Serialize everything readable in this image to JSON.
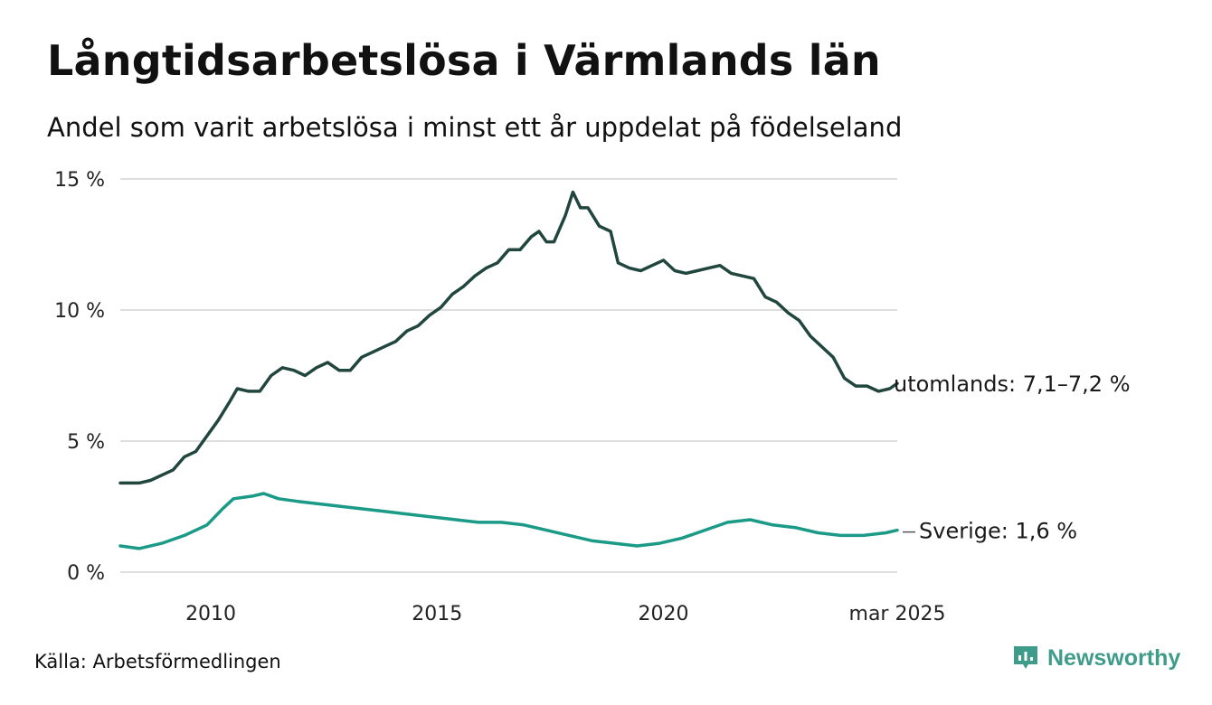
{
  "colors": {
    "series_utomlands": "#21463d",
    "series_sverige": "#1a9a87",
    "grid": "#dedede",
    "brand": "#3f9c8a"
  },
  "chart_data": {
    "type": "line",
    "title": "Långtidsarbetslösa i Värmlands län",
    "subtitle": "Andel som varit arbetslösa i minst ett år uppdelat på födelseland",
    "xlabel": "",
    "ylabel": "",
    "xlim": [
      "2008-01",
      "2025-03"
    ],
    "ylim": [
      0,
      15
    ],
    "grid": true,
    "x_ticks": [
      {
        "x": "2010-01",
        "label": "2010"
      },
      {
        "x": "2015-01",
        "label": "2015"
      },
      {
        "x": "2020-01",
        "label": "2020"
      },
      {
        "x": "2025-03",
        "label": "mar 2025"
      }
    ],
    "y_ticks": [
      {
        "value": 0,
        "label": "0 %"
      },
      {
        "value": 5,
        "label": "5 %"
      },
      {
        "value": 10,
        "label": "10 %"
      },
      {
        "value": 15,
        "label": "15 %"
      }
    ],
    "series": [
      {
        "end_label": "utomlands: 7,1–7,2 %",
        "color": "#21463d",
        "points": [
          [
            "2008-01",
            3.4
          ],
          [
            "2008-03",
            3.4
          ],
          [
            "2008-06",
            3.4
          ],
          [
            "2008-09",
            3.5
          ],
          [
            "2008-12",
            3.7
          ],
          [
            "2009-03",
            3.9
          ],
          [
            "2009-06",
            4.4
          ],
          [
            "2009-09",
            4.6
          ],
          [
            "2009-12",
            5.2
          ],
          [
            "2010-03",
            5.8
          ],
          [
            "2010-06",
            6.5
          ],
          [
            "2010-08",
            7.0
          ],
          [
            "2010-11",
            6.9
          ],
          [
            "2011-02",
            6.9
          ],
          [
            "2011-05",
            7.5
          ],
          [
            "2011-08",
            7.8
          ],
          [
            "2011-11",
            7.7
          ],
          [
            "2012-02",
            7.5
          ],
          [
            "2012-05",
            7.8
          ],
          [
            "2012-08",
            8.0
          ],
          [
            "2012-11",
            7.7
          ],
          [
            "2013-02",
            7.7
          ],
          [
            "2013-05",
            8.2
          ],
          [
            "2013-08",
            8.4
          ],
          [
            "2013-11",
            8.6
          ],
          [
            "2014-02",
            8.8
          ],
          [
            "2014-05",
            9.2
          ],
          [
            "2014-08",
            9.4
          ],
          [
            "2014-11",
            9.8
          ],
          [
            "2015-02",
            10.1
          ],
          [
            "2015-05",
            10.6
          ],
          [
            "2015-08",
            10.9
          ],
          [
            "2015-11",
            11.3
          ],
          [
            "2016-02",
            11.6
          ],
          [
            "2016-05",
            11.8
          ],
          [
            "2016-08",
            12.3
          ],
          [
            "2016-11",
            12.3
          ],
          [
            "2017-02",
            12.8
          ],
          [
            "2017-04",
            13.0
          ],
          [
            "2017-06",
            12.6
          ],
          [
            "2017-08",
            12.6
          ],
          [
            "2017-11",
            13.6
          ],
          [
            "2018-01",
            14.5
          ],
          [
            "2018-03",
            13.9
          ],
          [
            "2018-05",
            13.9
          ],
          [
            "2018-08",
            13.2
          ],
          [
            "2018-11",
            13.0
          ],
          [
            "2019-01",
            11.8
          ],
          [
            "2019-04",
            11.6
          ],
          [
            "2019-07",
            11.5
          ],
          [
            "2019-10",
            11.7
          ],
          [
            "2020-01",
            11.9
          ],
          [
            "2020-04",
            11.5
          ],
          [
            "2020-07",
            11.4
          ],
          [
            "2020-10",
            11.5
          ],
          [
            "2021-01",
            11.6
          ],
          [
            "2021-04",
            11.7
          ],
          [
            "2021-07",
            11.4
          ],
          [
            "2021-10",
            11.3
          ],
          [
            "2022-01",
            11.2
          ],
          [
            "2022-04",
            10.5
          ],
          [
            "2022-07",
            10.3
          ],
          [
            "2022-10",
            9.9
          ],
          [
            "2023-01",
            9.6
          ],
          [
            "2023-04",
            9.0
          ],
          [
            "2023-07",
            8.6
          ],
          [
            "2023-10",
            8.2
          ],
          [
            "2024-01",
            7.4
          ],
          [
            "2024-04",
            7.1
          ],
          [
            "2024-07",
            7.1
          ],
          [
            "2024-10",
            6.9
          ],
          [
            "2025-01",
            7.0
          ],
          [
            "2025-03",
            7.2
          ]
        ]
      },
      {
        "end_label": "Sverige: 1,6 %",
        "color": "#1a9a87",
        "points": [
          [
            "2008-01",
            1.0
          ],
          [
            "2008-06",
            0.9
          ],
          [
            "2008-12",
            1.1
          ],
          [
            "2009-06",
            1.4
          ],
          [
            "2009-12",
            1.8
          ],
          [
            "2010-04",
            2.4
          ],
          [
            "2010-07",
            2.8
          ],
          [
            "2010-12",
            2.9
          ],
          [
            "2011-03",
            3.0
          ],
          [
            "2011-07",
            2.8
          ],
          [
            "2011-12",
            2.7
          ],
          [
            "2012-06",
            2.6
          ],
          [
            "2012-12",
            2.5
          ],
          [
            "2013-06",
            2.4
          ],
          [
            "2013-12",
            2.3
          ],
          [
            "2014-06",
            2.2
          ],
          [
            "2014-12",
            2.1
          ],
          [
            "2015-06",
            2.0
          ],
          [
            "2015-12",
            1.9
          ],
          [
            "2016-06",
            1.9
          ],
          [
            "2016-12",
            1.8
          ],
          [
            "2017-06",
            1.6
          ],
          [
            "2017-12",
            1.4
          ],
          [
            "2018-06",
            1.2
          ],
          [
            "2018-12",
            1.1
          ],
          [
            "2019-06",
            1.0
          ],
          [
            "2019-12",
            1.1
          ],
          [
            "2020-06",
            1.3
          ],
          [
            "2020-12",
            1.6
          ],
          [
            "2021-06",
            1.9
          ],
          [
            "2021-12",
            2.0
          ],
          [
            "2022-06",
            1.8
          ],
          [
            "2022-12",
            1.7
          ],
          [
            "2023-06",
            1.5
          ],
          [
            "2023-12",
            1.4
          ],
          [
            "2024-06",
            1.4
          ],
          [
            "2024-12",
            1.5
          ],
          [
            "2025-03",
            1.6
          ]
        ]
      }
    ]
  },
  "footer": {
    "source": "Källa: Arbetsförmedlingen",
    "brand": "Newsworthy"
  }
}
